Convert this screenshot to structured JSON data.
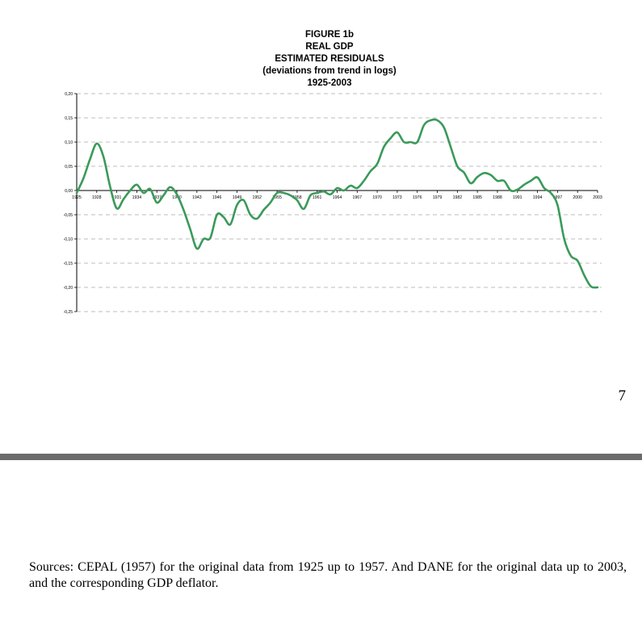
{
  "chart_data": {
    "type": "line",
    "title_lines": [
      "FIGURE 1b",
      "REAL GDP",
      "ESTIMATED RESIDUALS",
      "(deviations from trend in logs)",
      "1925-2003"
    ],
    "xlabel": "",
    "ylabel": "",
    "xlim": [
      1925,
      2003
    ],
    "ylim": [
      -0.25,
      0.2
    ],
    "grid": true,
    "legend": "none",
    "line_color": "#3a9a5a",
    "y_ticks": [
      {
        "value": 0.2,
        "label": "0,20"
      },
      {
        "value": 0.15,
        "label": "0,15"
      },
      {
        "value": 0.1,
        "label": "0,10"
      },
      {
        "value": 0.05,
        "label": "0,05"
      },
      {
        "value": 0.0,
        "label": "0,00"
      },
      {
        "value": -0.05,
        "label": "-0,05"
      },
      {
        "value": -0.1,
        "label": "-0,10"
      },
      {
        "value": -0.15,
        "label": "-0,15"
      },
      {
        "value": -0.2,
        "label": "-0,20"
      },
      {
        "value": -0.25,
        "label": "-0,25"
      }
    ],
    "x_ticks": [
      {
        "value": 1925,
        "label": "1925"
      },
      {
        "value": 1928,
        "label": "1928"
      },
      {
        "value": 1931,
        "label": "1931"
      },
      {
        "value": 1934,
        "label": "1934"
      },
      {
        "value": 1937,
        "label": "1937"
      },
      {
        "value": 1940,
        "label": "1940"
      },
      {
        "value": 1943,
        "label": "1943"
      },
      {
        "value": 1946,
        "label": "1946"
      },
      {
        "value": 1949,
        "label": "1949"
      },
      {
        "value": 1952,
        "label": "1952"
      },
      {
        "value": 1955,
        "label": "1955"
      },
      {
        "value": 1958,
        "label": "1958"
      },
      {
        "value": 1961,
        "label": "1961"
      },
      {
        "value": 1964,
        "label": "1964"
      },
      {
        "value": 1967,
        "label": "1967"
      },
      {
        "value": 1970,
        "label": "1970"
      },
      {
        "value": 1973,
        "label": "1973"
      },
      {
        "value": 1976,
        "label": "1976"
      },
      {
        "value": 1979,
        "label": "1979"
      },
      {
        "value": 1982,
        "label": "1982"
      },
      {
        "value": 1985,
        "label": "1985"
      },
      {
        "value": 1988,
        "label": "1988"
      },
      {
        "value": 1991,
        "label": "1991"
      },
      {
        "value": 1994,
        "label": "1994"
      },
      {
        "value": 1997,
        "label": "1997"
      },
      {
        "value": 2000,
        "label": "2000"
      },
      {
        "value": 2003,
        "label": "2003"
      }
    ],
    "series": [
      {
        "name": "Estimated residuals",
        "x": [
          1925,
          1926,
          1927,
          1928,
          1929,
          1930,
          1931,
          1932,
          1933,
          1934,
          1935,
          1936,
          1937,
          1938,
          1939,
          1940,
          1941,
          1942,
          1943,
          1944,
          1945,
          1946,
          1947,
          1948,
          1949,
          1950,
          1951,
          1952,
          1953,
          1954,
          1955,
          1956,
          1957,
          1958,
          1959,
          1960,
          1961,
          1962,
          1963,
          1964,
          1965,
          1966,
          1967,
          1968,
          1969,
          1970,
          1971,
          1972,
          1973,
          1974,
          1975,
          1976,
          1977,
          1978,
          1979,
          1980,
          1981,
          1982,
          1983,
          1984,
          1985,
          1986,
          1987,
          1988,
          1989,
          1990,
          1991,
          1992,
          1993,
          1994,
          1995,
          1996,
          1997,
          1998,
          1999,
          2000,
          2001,
          2002,
          2003
        ],
        "values": [
          -0.005,
          0.025,
          0.065,
          0.097,
          0.07,
          0.008,
          -0.037,
          -0.018,
          0.0,
          0.012,
          -0.005,
          0.003,
          -0.025,
          -0.01,
          0.007,
          -0.008,
          -0.04,
          -0.08,
          -0.12,
          -0.1,
          -0.098,
          -0.05,
          -0.055,
          -0.07,
          -0.03,
          -0.02,
          -0.05,
          -0.058,
          -0.04,
          -0.025,
          -0.005,
          -0.005,
          -0.01,
          -0.02,
          -0.038,
          -0.01,
          -0.005,
          -0.002,
          -0.008,
          0.005,
          0.0,
          0.01,
          0.005,
          0.02,
          0.04,
          0.055,
          0.09,
          0.108,
          0.12,
          0.1,
          0.1,
          0.1,
          0.135,
          0.145,
          0.145,
          0.13,
          0.09,
          0.05,
          0.037,
          0.015,
          0.028,
          0.036,
          0.032,
          0.02,
          0.02,
          0.0,
          0.002,
          0.012,
          0.02,
          0.027,
          0.005,
          -0.005,
          -0.03,
          -0.1,
          -0.135,
          -0.145,
          -0.175,
          -0.198,
          -0.2
        ]
      }
    ]
  },
  "page": {
    "number": "7",
    "sources": "Sources: CEPAL (1957) for the original data from 1925 up to 1957. And DANE for the original data up to 2003, and the corresponding GDP deflator."
  }
}
